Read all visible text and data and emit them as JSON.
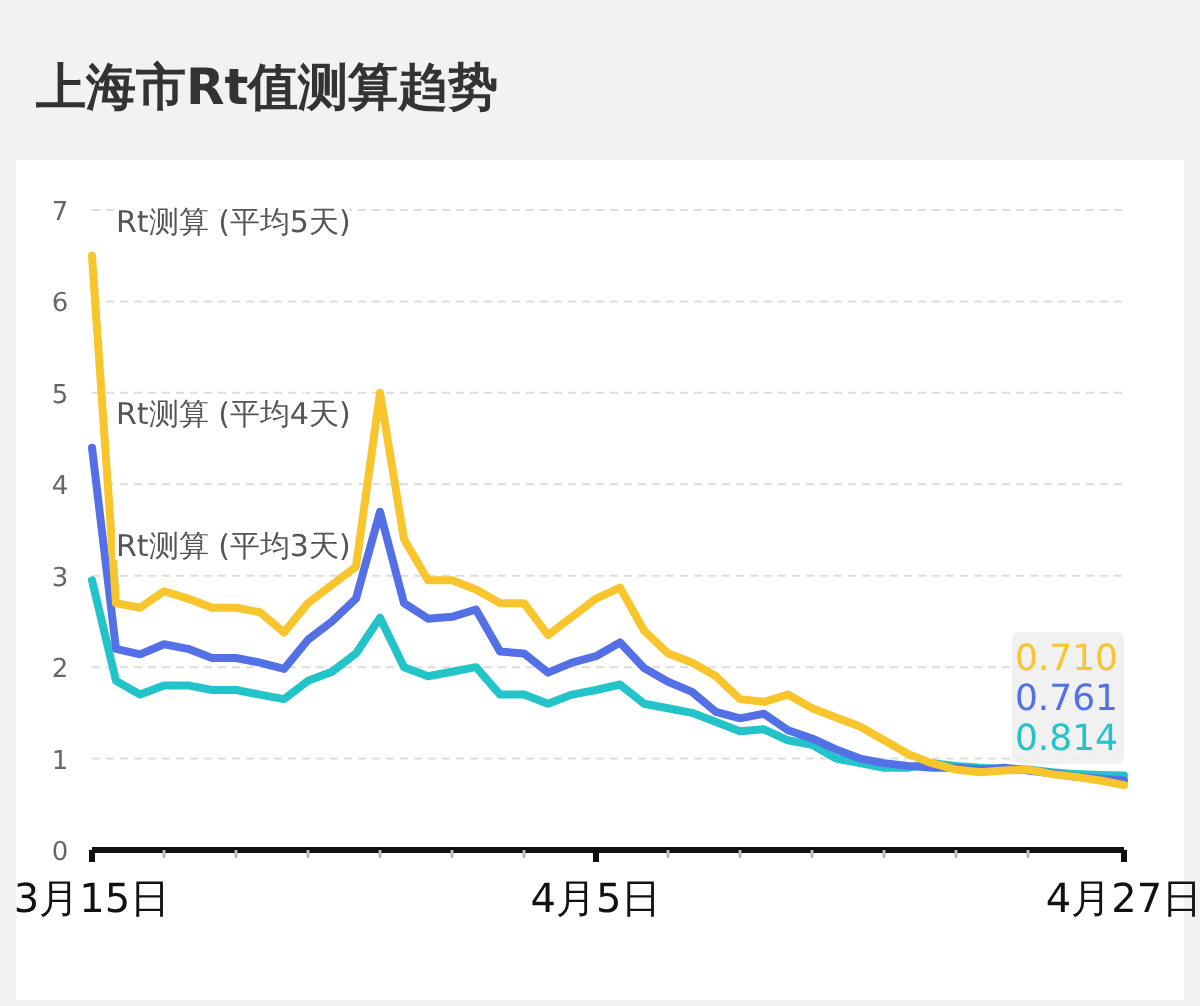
{
  "chart_data": {
    "type": "line",
    "title": "上海市Rt值测算趋势",
    "x": [
      "--03-15",
      "--03-16",
      "--03-17",
      "--03-18",
      "--03-19",
      "--03-20",
      "--03-21",
      "--03-22",
      "--03-23",
      "--03-24",
      "--03-25",
      "--03-26",
      "--03-27",
      "--03-28",
      "--03-29",
      "--03-30",
      "--03-31",
      "--04-01",
      "--04-02",
      "--04-03",
      "--04-04",
      "--04-05",
      "--04-06",
      "--04-07",
      "--04-08",
      "--04-09",
      "--04-10",
      "--04-11",
      "--04-12",
      "--04-13",
      "--04-14",
      "--04-15",
      "--04-16",
      "--04-17",
      "--04-18",
      "--04-19",
      "--04-20",
      "--04-21",
      "--04-22",
      "--04-23",
      "--04-24",
      "--04-25",
      "--04-26",
      "--04-27"
    ],
    "series": [
      {
        "name": "Rt测算 (平均5天)",
        "color": "#f8c52c",
        "values": [
          6.5,
          2.7,
          2.65,
          2.83,
          2.75,
          2.65,
          2.65,
          2.6,
          2.38,
          2.7,
          2.9,
          3.1,
          5.0,
          3.4,
          2.95,
          2.95,
          2.85,
          2.7,
          2.7,
          2.35,
          2.55,
          2.75,
          2.87,
          2.4,
          2.15,
          2.05,
          1.9,
          1.65,
          1.62,
          1.7,
          1.55,
          1.45,
          1.35,
          1.2,
          1.05,
          0.95,
          0.88,
          0.85,
          0.87,
          0.88,
          0.83,
          0.8,
          0.76,
          0.71
        ],
        "value_labels": [
          null,
          null,
          null,
          null,
          null,
          null,
          null,
          null,
          null,
          null,
          null,
          null,
          null,
          null,
          null,
          null,
          null,
          null,
          null,
          null,
          null,
          null,
          null,
          null,
          null,
          null,
          null,
          null,
          null,
          null,
          null,
          null,
          null,
          null,
          null,
          null,
          null,
          null,
          null,
          null,
          null,
          null,
          null,
          "0.710"
        ]
      },
      {
        "name": "Rt测算 (平均4天)",
        "color": "#5470e6",
        "values": [
          4.4,
          2.2,
          2.14,
          2.25,
          2.2,
          2.1,
          2.1,
          2.05,
          1.98,
          2.3,
          2.5,
          2.75,
          3.7,
          2.7,
          2.53,
          2.55,
          2.63,
          2.17,
          2.15,
          1.94,
          2.05,
          2.12,
          2.27,
          1.99,
          1.84,
          1.73,
          1.51,
          1.44,
          1.49,
          1.31,
          1.22,
          1.1,
          1.0,
          0.95,
          0.92,
          0.9,
          0.9,
          0.88,
          0.9,
          0.87,
          0.84,
          0.8,
          0.78,
          0.761
        ],
        "value_labels": [
          null,
          null,
          null,
          null,
          null,
          null,
          null,
          null,
          null,
          null,
          null,
          null,
          null,
          null,
          null,
          null,
          null,
          null,
          null,
          null,
          null,
          null,
          null,
          null,
          null,
          null,
          null,
          null,
          null,
          null,
          null,
          null,
          null,
          null,
          null,
          null,
          null,
          null,
          null,
          null,
          null,
          null,
          null,
          "0.761"
        ]
      },
      {
        "name": "Rt测算 (平均3天)",
        "color": "#22c3c9",
        "values": [
          2.95,
          1.85,
          1.7,
          1.8,
          1.8,
          1.75,
          1.75,
          1.7,
          1.65,
          1.85,
          1.95,
          2.15,
          2.54,
          2.0,
          1.9,
          1.95,
          2.0,
          1.7,
          1.7,
          1.6,
          1.7,
          1.75,
          1.81,
          1.6,
          1.55,
          1.5,
          1.4,
          1.3,
          1.32,
          1.2,
          1.15,
          1.0,
          0.95,
          0.9,
          0.9,
          0.95,
          0.92,
          0.9,
          0.88,
          0.88,
          0.85,
          0.83,
          0.82,
          0.814
        ],
        "value_labels": [
          null,
          null,
          null,
          null,
          null,
          null,
          null,
          null,
          null,
          null,
          null,
          null,
          null,
          null,
          null,
          null,
          null,
          null,
          null,
          null,
          null,
          null,
          null,
          null,
          null,
          null,
          null,
          null,
          null,
          null,
          null,
          null,
          null,
          null,
          null,
          null,
          null,
          null,
          null,
          null,
          null,
          null,
          null,
          "0.814"
        ]
      }
    ],
    "xlim": [
      "--03-15",
      "--04-27"
    ],
    "xticks": [
      {
        "value": "--03-15",
        "label": "3月15日"
      },
      {
        "value": "--03-18",
        "label": null
      },
      {
        "value": "--03-21",
        "label": null
      },
      {
        "value": "--03-24",
        "label": null
      },
      {
        "value": "--03-27",
        "label": null
      },
      {
        "value": "--03-30",
        "label": null
      },
      {
        "value": "--04-02",
        "label": null
      },
      {
        "value": "--04-05",
        "label": "4月5日"
      },
      {
        "value": "--04-08",
        "label": null
      },
      {
        "value": "--04-11",
        "label": null
      },
      {
        "value": "--04-14",
        "label": null
      },
      {
        "value": "--04-17",
        "label": null
      },
      {
        "value": "--04-20",
        "label": null
      },
      {
        "value": "--04-23",
        "label": null
      },
      {
        "value": "--04-27",
        "label": "4月27日"
      }
    ],
    "ylim": [
      0,
      7
    ],
    "yticks": [
      0,
      1,
      2,
      3,
      4,
      5,
      6,
      7
    ],
    "grid": "y",
    "legend": false,
    "marker": "none",
    "line_style": "solid"
  }
}
